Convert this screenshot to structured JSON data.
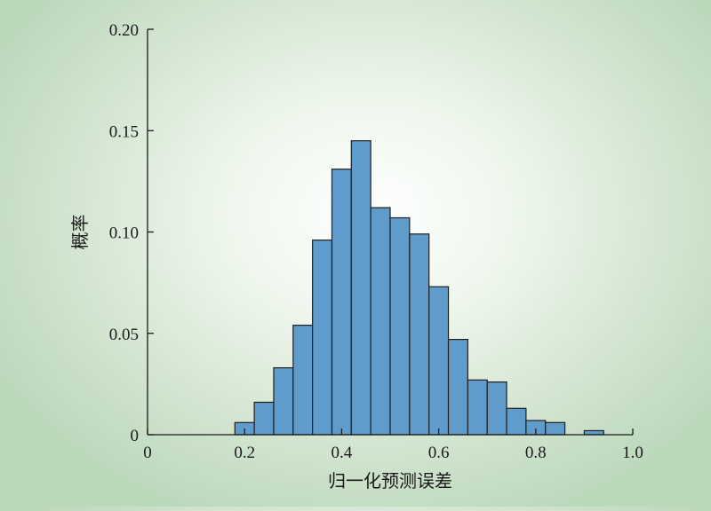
{
  "chart_data": {
    "type": "bar",
    "title": "",
    "xlabel": "归一化预测误差",
    "ylabel": "概率",
    "xlim": [
      0,
      1.0
    ],
    "ylim": [
      0,
      0.2
    ],
    "bin_width": 0.04,
    "bin_starts": [
      0.18,
      0.22,
      0.26,
      0.3,
      0.34,
      0.38,
      0.42,
      0.46,
      0.5,
      0.54,
      0.58,
      0.62,
      0.66,
      0.7,
      0.74,
      0.78,
      0.82,
      0.86,
      0.9
    ],
    "values": [
      0.006,
      0.016,
      0.033,
      0.054,
      0.096,
      0.131,
      0.145,
      0.112,
      0.107,
      0.099,
      0.073,
      0.047,
      0.027,
      0.026,
      0.013,
      0.007,
      0.006,
      0.0,
      0.002
    ],
    "x_ticks": [
      {
        "value": 0,
        "label": "0"
      },
      {
        "value": 0.2,
        "label": "0.2"
      },
      {
        "value": 0.4,
        "label": "0.4"
      },
      {
        "value": 0.6,
        "label": "0.6"
      },
      {
        "value": 0.8,
        "label": "0.8"
      },
      {
        "value": 1.0,
        "label": "1.0"
      }
    ],
    "y_ticks": [
      {
        "value": 0,
        "label": "0"
      },
      {
        "value": 0.05,
        "label": "0.05"
      },
      {
        "value": 0.1,
        "label": "0.10"
      },
      {
        "value": 0.15,
        "label": "0.15"
      },
      {
        "value": 0.2,
        "label": "0.20"
      }
    ],
    "grid": false,
    "colors": {
      "bar": "#5f9ccb",
      "edge": "#1f1f1f"
    }
  }
}
